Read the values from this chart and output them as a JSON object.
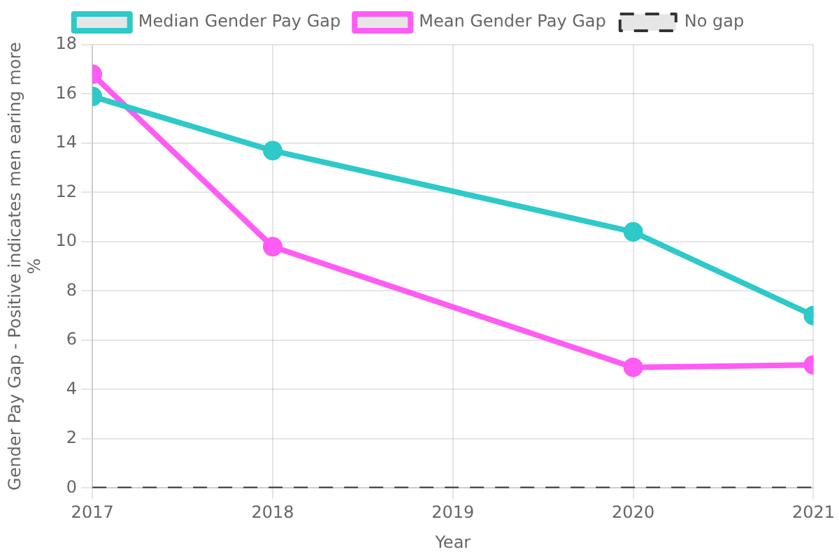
{
  "chart_data": {
    "type": "line",
    "xlabel": "Year",
    "ylabel": "Gender Pay Gap - Positive indicates men earing more\n%",
    "xlim": [
      2017,
      2021
    ],
    "xticks": [
      2017,
      2018,
      2019,
      2020,
      2021
    ],
    "ylim": [
      0,
      18
    ],
    "yticks": [
      0,
      2,
      4,
      6,
      8,
      10,
      12,
      14,
      16,
      18
    ],
    "grid": true,
    "legend": "top",
    "marker": "circle",
    "series": [
      {
        "name": "Median Gender Pay Gap",
        "color": "#2ec9c9",
        "x": [
          2017,
          2018,
          2020,
          2021
        ],
        "values": [
          15.9,
          13.7,
          10.4,
          7.0
        ]
      },
      {
        "name": "Mean Gender Pay Gap",
        "color": "#ff5cf4",
        "x": [
          2017,
          2018,
          2020,
          2021
        ],
        "values": [
          16.8,
          9.8,
          4.9,
          5.0
        ]
      },
      {
        "name": "No gap",
        "color": "#333333",
        "x": [
          2017,
          2021
        ],
        "values": [
          0,
          0
        ],
        "line_style": "dashed",
        "marker": "none"
      }
    ]
  }
}
